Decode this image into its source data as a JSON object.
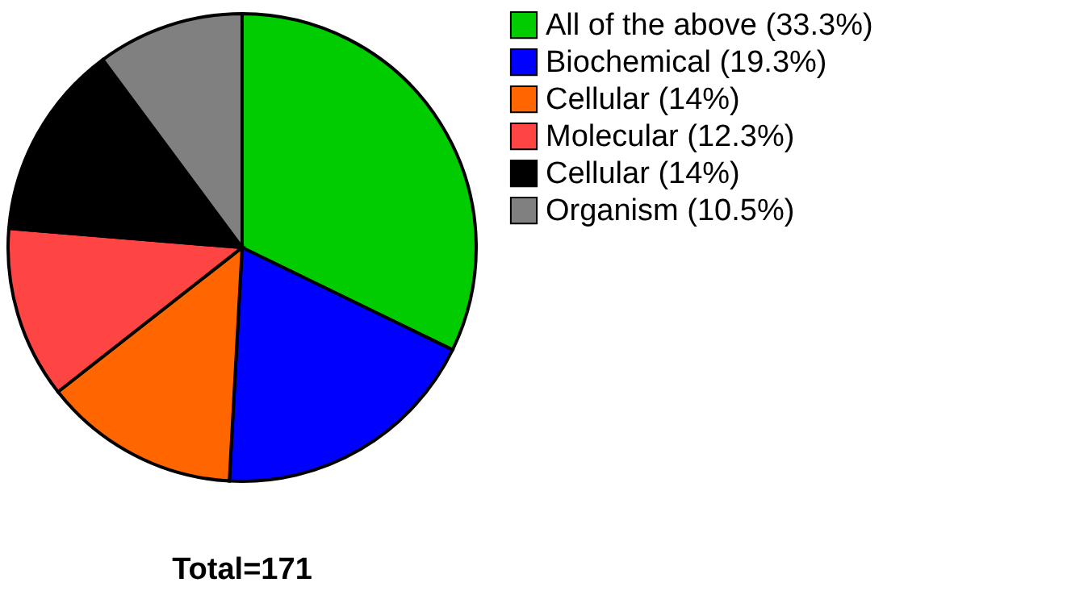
{
  "chart_data": {
    "type": "pie",
    "categories": [
      "All of the above (33.3%)",
      "Biochemical (19.3%)",
      "Cellular (14%)",
      "Molecular (12.3%)",
      "Cellular (14%)",
      "Organism (10.5%)"
    ],
    "values": [
      33.3,
      19.3,
      14,
      12.3,
      14,
      10.5
    ],
    "colors": [
      "#00cc00",
      "#0000ff",
      "#ff6600",
      "#ff4444",
      "#000000",
      "#808080"
    ],
    "legend": "right",
    "annotations": [
      "Total=171"
    ]
  }
}
